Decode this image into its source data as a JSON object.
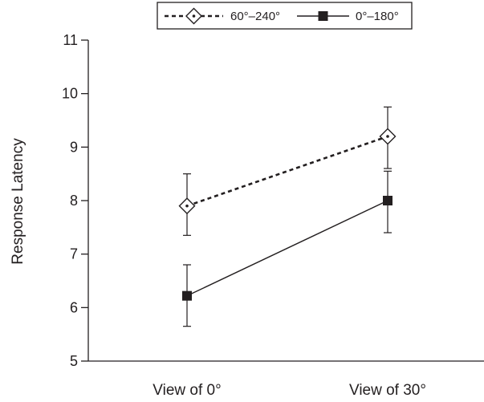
{
  "chart_data": {
    "type": "line",
    "title": "",
    "xlabel": "",
    "ylabel": "Response Latency",
    "categories": [
      "View of 0°",
      "View of 30°"
    ],
    "ylim": [
      5,
      11
    ],
    "yticks": [
      5,
      6,
      7,
      8,
      9,
      10,
      11
    ],
    "grid": false,
    "legend_position": "top",
    "series": [
      {
        "name": "60°–240°",
        "line_style": "dotted",
        "marker": "diamond-open",
        "values": [
          7.9,
          9.2
        ],
        "error_low": [
          7.35,
          8.6
        ],
        "error_high": [
          8.5,
          9.75
        ]
      },
      {
        "name": "0°–180°",
        "line_style": "solid",
        "marker": "square-filled",
        "values": [
          6.22,
          8.0
        ],
        "error_low": [
          5.65,
          7.4
        ],
        "error_high": [
          6.8,
          8.55
        ]
      }
    ],
    "colors": {
      "line": "#231f20",
      "background": "#ffffff"
    }
  }
}
